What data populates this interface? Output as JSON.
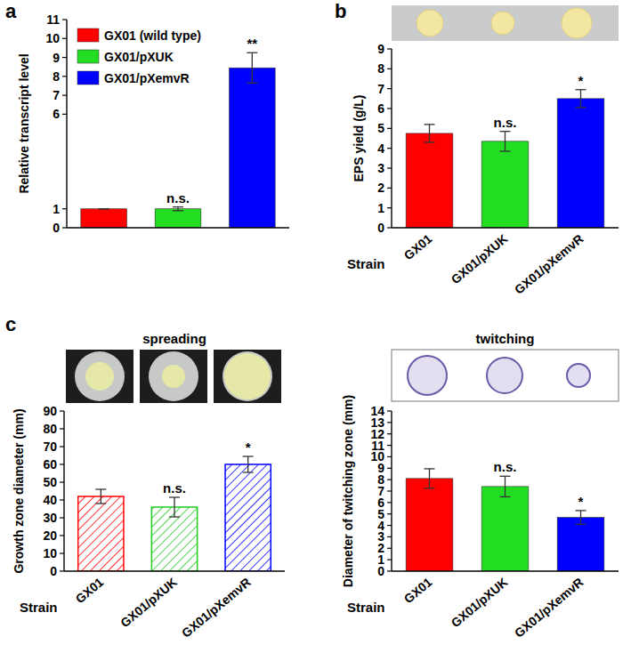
{
  "panels": [
    "a",
    "b",
    "c"
  ],
  "chart_data": [
    {
      "type": "bar",
      "categories": [
        "GX01 (wild type)",
        "GX01/pXUK",
        "GX01/pXemvR"
      ],
      "values": [
        1,
        1,
        8.45
      ],
      "errors": [
        0,
        0.1,
        0.8
      ],
      "colors": [
        "#ff0000",
        "#22dd22",
        "#0000ff"
      ],
      "ylabel": "Relative transcript level",
      "ylim": [
        0,
        11
      ],
      "yticks": [
        0,
        1,
        6,
        7,
        8,
        9,
        10,
        11
      ],
      "legend": "upper left",
      "tick_labels": "y",
      "annotations": [
        {
          "category": "GX01/pXUK",
          "text": "n.s."
        },
        {
          "category": "GX01/pXemvR",
          "text": "**"
        }
      ]
    },
    {
      "type": "bar",
      "categories": [
        "GX01",
        "GX01/pXUK",
        "GX01/pXemvR"
      ],
      "values": [
        4.75,
        4.35,
        6.5
      ],
      "errors": [
        0.45,
        0.5,
        0.45
      ],
      "colors": [
        "#ff0000",
        "#22dd22",
        "#0000ff"
      ],
      "xlabel": "Strain",
      "ylabel": "EPS yield (g/L)",
      "ylim": [
        0,
        9
      ],
      "yticks": [
        0,
        1,
        2,
        3,
        4,
        5,
        6,
        7,
        8,
        9
      ],
      "annotations": [
        {
          "category": "GX01/pXUK",
          "text": "n.s."
        },
        {
          "category": "GX01/pXemvR",
          "text": "*"
        }
      ]
    },
    {
      "type": "bar",
      "title": "spreading",
      "categories": [
        "GX01",
        "GX01/pXUK",
        "GX01/pXemvR"
      ],
      "values": [
        42,
        36,
        60
      ],
      "errors": [
        4,
        5.5,
        4.5
      ],
      "colors": [
        "#ff0000",
        "#22cc22",
        "#0000ff"
      ],
      "xlabel": "Strain",
      "ylabel": "Growth zone diameter (mm)",
      "ylim": [
        0,
        90
      ],
      "yticks": [
        0,
        10,
        20,
        30,
        40,
        50,
        60,
        70,
        80,
        90
      ],
      "annotations": [
        {
          "category": "GX01/pXUK",
          "text": "n.s."
        },
        {
          "category": "GX01/pXemvR",
          "text": "*"
        }
      ]
    },
    {
      "type": "bar",
      "title": "twitching",
      "categories": [
        "GX01",
        "GX01/pXUK",
        "GX01/pXemvR"
      ],
      "values": [
        8.1,
        7.4,
        4.7
      ],
      "errors": [
        0.85,
        0.9,
        0.6
      ],
      "colors": [
        "#ff0000",
        "#22dd22",
        "#0000ff"
      ],
      "xlabel": "Strain",
      "ylabel": "Diameter of twitching zone (mm)",
      "ylim": [
        0,
        14
      ],
      "yticks": [
        0,
        1,
        2,
        3,
        4,
        5,
        6,
        7,
        8,
        9,
        10,
        11,
        12,
        13,
        14
      ],
      "annotations": [
        {
          "category": "GX01/pXUK",
          "text": "n.s."
        },
        {
          "category": "GX01/pXemvR",
          "text": "*"
        }
      ]
    }
  ]
}
